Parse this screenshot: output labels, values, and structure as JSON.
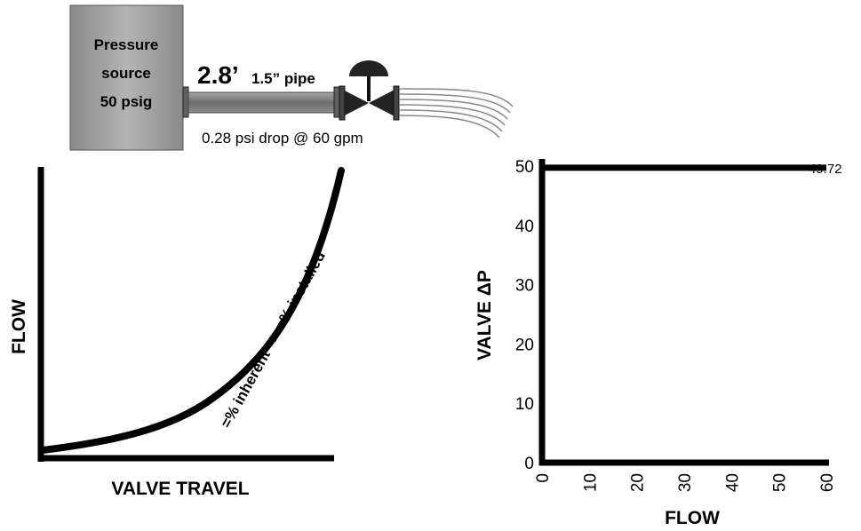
{
  "source_box": {
    "line1": "Pressure",
    "line2": "source",
    "line3": "50 psig"
  },
  "pipe": {
    "length": "2.8’",
    "size": "1.5” pipe",
    "drop": "0.28 psi drop @ 60 gpm"
  },
  "left_plot": {
    "ylabel": "FLOW",
    "xlabel": "VALVE TRAVEL",
    "curve_label": "=% inherent –> =% installed"
  },
  "chart_data": {
    "type": "line",
    "xlabel": "FLOW",
    "ylabel": "VALVE ΔP",
    "xlim": [
      0,
      60
    ],
    "ylim": [
      0,
      50
    ],
    "xticks": [
      "0",
      "10",
      "20",
      "30",
      "40",
      "50",
      "60"
    ],
    "yticks": [
      "0",
      "10",
      "20",
      "30",
      "40",
      "50"
    ],
    "series": [
      {
        "x": [
          0,
          60
        ],
        "y": [
          49.72,
          49.72
        ]
      }
    ],
    "end_label": "49.72",
    "grid": false
  },
  "colors": {
    "box_fill": "#9a9a9a",
    "pipe_fill": "#808080",
    "line": "#000000"
  }
}
